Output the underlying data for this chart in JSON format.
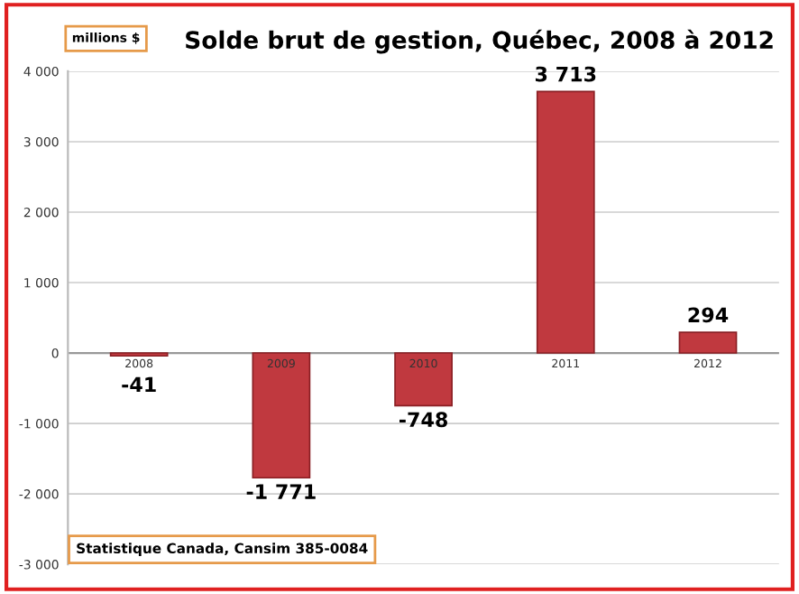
{
  "chart_data": {
    "type": "bar",
    "title": "Solde brut de gestion, Québec, 2008 à 2012",
    "categories": [
      "2008",
      "2009",
      "2010",
      "2011",
      "2012"
    ],
    "values": [
      -41,
      -1771,
      -748,
      3713,
      294
    ],
    "value_labels": [
      "-41",
      "-1 771",
      "-748",
      "3 713",
      "294"
    ],
    "color": "#c0393f",
    "ylim": [
      -3000,
      4000
    ],
    "yticks": [
      {
        "value": -3000,
        "label": "-3 000"
      },
      {
        "value": -2000,
        "label": "-2 000"
      },
      {
        "value": -1000,
        "label": "-1 000"
      },
      0,
      {
        "value": 1000,
        "label": "1 000"
      },
      {
        "value": 2000,
        "label": "2 000"
      },
      {
        "value": 3000,
        "label": "3 000"
      },
      {
        "value": 4000,
        "label": "4 000"
      }
    ],
    "grid": "y",
    "annotations": [
      "millions $",
      "Statistique Canada, Cansim 385-0084"
    ]
  }
}
